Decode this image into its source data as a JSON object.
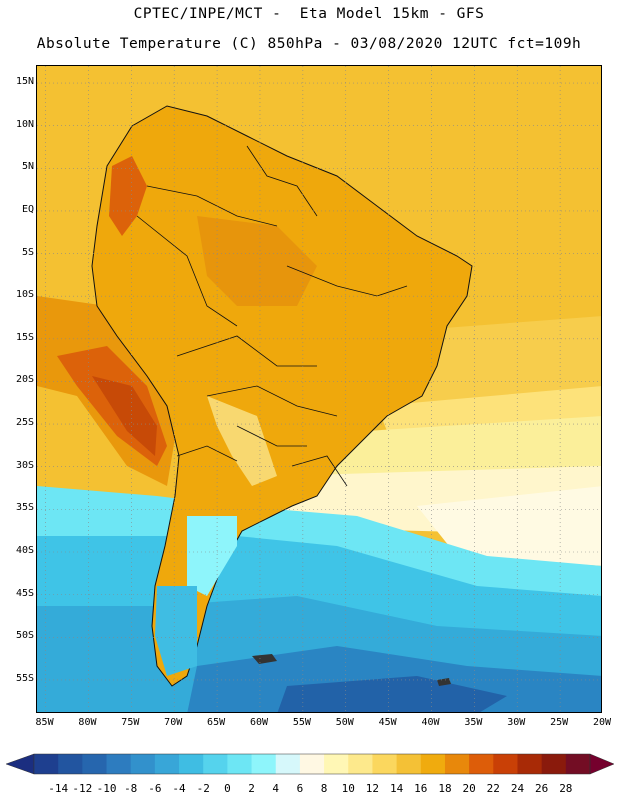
{
  "header": {
    "line1": "CPTEC/INPE/MCT -  Eta Model 15km - GFS",
    "line2": "Absolute Temperature (C) 850hPa - 03/08/2020 12UTC fct=109h"
  },
  "map": {
    "projection": "lat-lon",
    "lon_range": [
      -86,
      -20
    ],
    "lat_range": [
      -59,
      17
    ],
    "lat_labels": [
      "15N",
      "10N",
      "5N",
      "EQ",
      "5S",
      "10S",
      "15S",
      "20S",
      "25S",
      "30S",
      "35S",
      "40S",
      "45S",
      "50S",
      "55S"
    ],
    "lon_labels": [
      "85W",
      "80W",
      "75W",
      "70W",
      "65W",
      "60W",
      "55W",
      "50W",
      "45W",
      "40W",
      "35W",
      "30W",
      "25W",
      "20W"
    ],
    "grid": "dotted",
    "colors": {
      "ocean_north": "#f1c02e",
      "land_warm": "#efa80c",
      "hot": "#dc620a",
      "very_hot": "#c74a07",
      "mild": "#fde27a",
      "cool_pale": "#fff6cc",
      "cold": "#33c3e8",
      "colder": "#21a8d8",
      "coldest": "#2266a8"
    }
  },
  "colorbar": {
    "labels": [
      "-14",
      "-12",
      "-10",
      "-8",
      "-6",
      "-4",
      "-2",
      "0",
      "2",
      "4",
      "6",
      "8",
      "10",
      "12",
      "14",
      "16",
      "18",
      "20",
      "22",
      "24",
      "26",
      "28"
    ],
    "colors": [
      "#1e3f8f",
      "#2255a0",
      "#2666ae",
      "#2d7cbf",
      "#3291cc",
      "#38a6d8",
      "#3fbde3",
      "#55d3ed",
      "#6de6f4",
      "#8ef5fb",
      "#d6f8fb",
      "#fff8e3",
      "#fff7b5",
      "#fde98c",
      "#fbd75e",
      "#f4c136",
      "#f0ab0e",
      "#e8880b",
      "#dd5d09",
      "#c94006",
      "#a82a06",
      "#8a1a0c",
      "#730d24"
    ],
    "under_color": "#1b2e80",
    "over_color": "#75002d"
  }
}
